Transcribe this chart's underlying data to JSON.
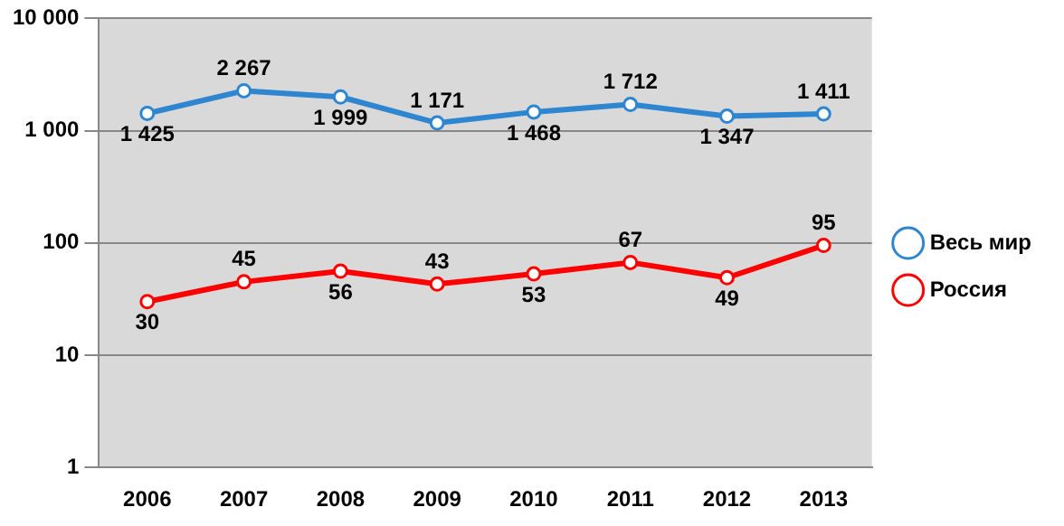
{
  "chart_data": {
    "type": "line",
    "categories": [
      "2006",
      "2007",
      "2008",
      "2009",
      "2010",
      "2011",
      "2012",
      "2013"
    ],
    "series": [
      {
        "name": "Весь мир",
        "color": "#2e86d0",
        "values": [
          1425,
          2267,
          1999,
          1171,
          1468,
          1712,
          1347,
          1411
        ],
        "value_labels": [
          "1 425",
          "2 267",
          "1 999",
          "1 171",
          "1 468",
          "1 712",
          "1 347",
          "1 411"
        ]
      },
      {
        "name": "Россия",
        "color": "#ff0000",
        "values": [
          30,
          45,
          56,
          43,
          53,
          67,
          49,
          95
        ],
        "value_labels": [
          "30",
          "45",
          "56",
          "43",
          "53",
          "67",
          "49",
          "95"
        ]
      }
    ],
    "log": "y",
    "ylim": [
      1,
      10000
    ],
    "yticks": [
      1,
      10,
      100,
      {
        "value": 1000,
        "label": "1 000"
      },
      {
        "value": 10000,
        "label": "10 000"
      }
    ],
    "grid": "y",
    "legend": "right",
    "marker": "circle",
    "line_style": "solid"
  }
}
